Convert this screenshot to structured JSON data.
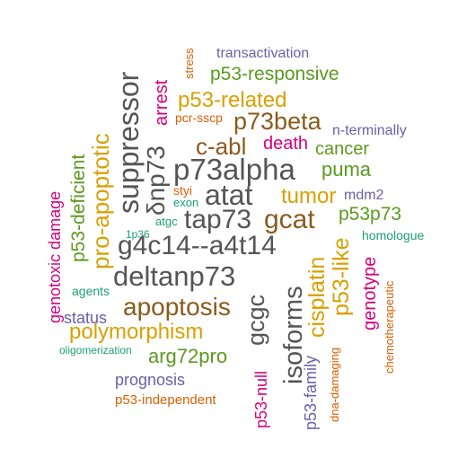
{
  "colors": {
    "dark_gray": "#555555",
    "brown": "#8B5A1B",
    "gold": "#D9A000",
    "green": "#5A9A1E",
    "magenta": "#D6007D",
    "purple": "#6A5FA8",
    "teal": "#1B9E77",
    "orange": "#D95F02"
  },
  "words": [
    {
      "text": "transactivation",
      "color": "purple"
    },
    {
      "text": "stress",
      "color": "orange"
    },
    {
      "text": "p53-responsive",
      "color": "green"
    },
    {
      "text": "arrest",
      "color": "magenta"
    },
    {
      "text": "p53-related",
      "color": "gold"
    },
    {
      "text": "suppressor",
      "color": "dark_gray"
    },
    {
      "text": "pcr-sscp",
      "color": "orange"
    },
    {
      "text": "p73beta",
      "color": "brown"
    },
    {
      "text": "n-terminally",
      "color": "purple"
    },
    {
      "text": "δnp73",
      "color": "dark_gray"
    },
    {
      "text": "p53-deficient",
      "color": "green"
    },
    {
      "text": "pro-apoptotic",
      "color": "gold"
    },
    {
      "text": "c-abl",
      "color": "brown"
    },
    {
      "text": "death",
      "color": "magenta"
    },
    {
      "text": "cancer",
      "color": "green"
    },
    {
      "text": "p73alpha",
      "color": "dark_gray"
    },
    {
      "text": "puma",
      "color": "green"
    },
    {
      "text": "styi",
      "color": "orange"
    },
    {
      "text": "atat",
      "color": "dark_gray"
    },
    {
      "text": "tumor",
      "color": "gold"
    },
    {
      "text": "mdm2",
      "color": "purple"
    },
    {
      "text": "exon",
      "color": "teal"
    },
    {
      "text": "genotoxic damage",
      "color": "magenta"
    },
    {
      "text": "tap73",
      "color": "dark_gray"
    },
    {
      "text": "gcat",
      "color": "brown"
    },
    {
      "text": "p53p73",
      "color": "green"
    },
    {
      "text": "atgc",
      "color": "teal"
    },
    {
      "text": "1p36",
      "color": "teal"
    },
    {
      "text": "g4c14--a4t14",
      "color": "dark_gray"
    },
    {
      "text": "homologue",
      "color": "teal"
    },
    {
      "text": "cisplatin",
      "color": "gold"
    },
    {
      "text": "p53-like",
      "color": "gold"
    },
    {
      "text": "chemotherapeutic",
      "color": "orange"
    },
    {
      "text": "deltanp73",
      "color": "dark_gray"
    },
    {
      "text": "gcgc",
      "color": "dark_gray"
    },
    {
      "text": "isoforms",
      "color": "dark_gray"
    },
    {
      "text": "genotype",
      "color": "magenta"
    },
    {
      "text": "agents",
      "color": "teal"
    },
    {
      "text": "apoptosis",
      "color": "brown"
    },
    {
      "text": "status",
      "color": "purple"
    },
    {
      "text": "polymorphism",
      "color": "gold"
    },
    {
      "text": "dna-damaging",
      "color": "orange"
    },
    {
      "text": "oligomerization",
      "color": "teal"
    },
    {
      "text": "arg72pro",
      "color": "green"
    },
    {
      "text": "prognosis",
      "color": "purple"
    },
    {
      "text": "p53-null",
      "color": "magenta"
    },
    {
      "text": "p53-family",
      "color": "purple"
    },
    {
      "text": "p53-independent",
      "color": "orange"
    }
  ]
}
